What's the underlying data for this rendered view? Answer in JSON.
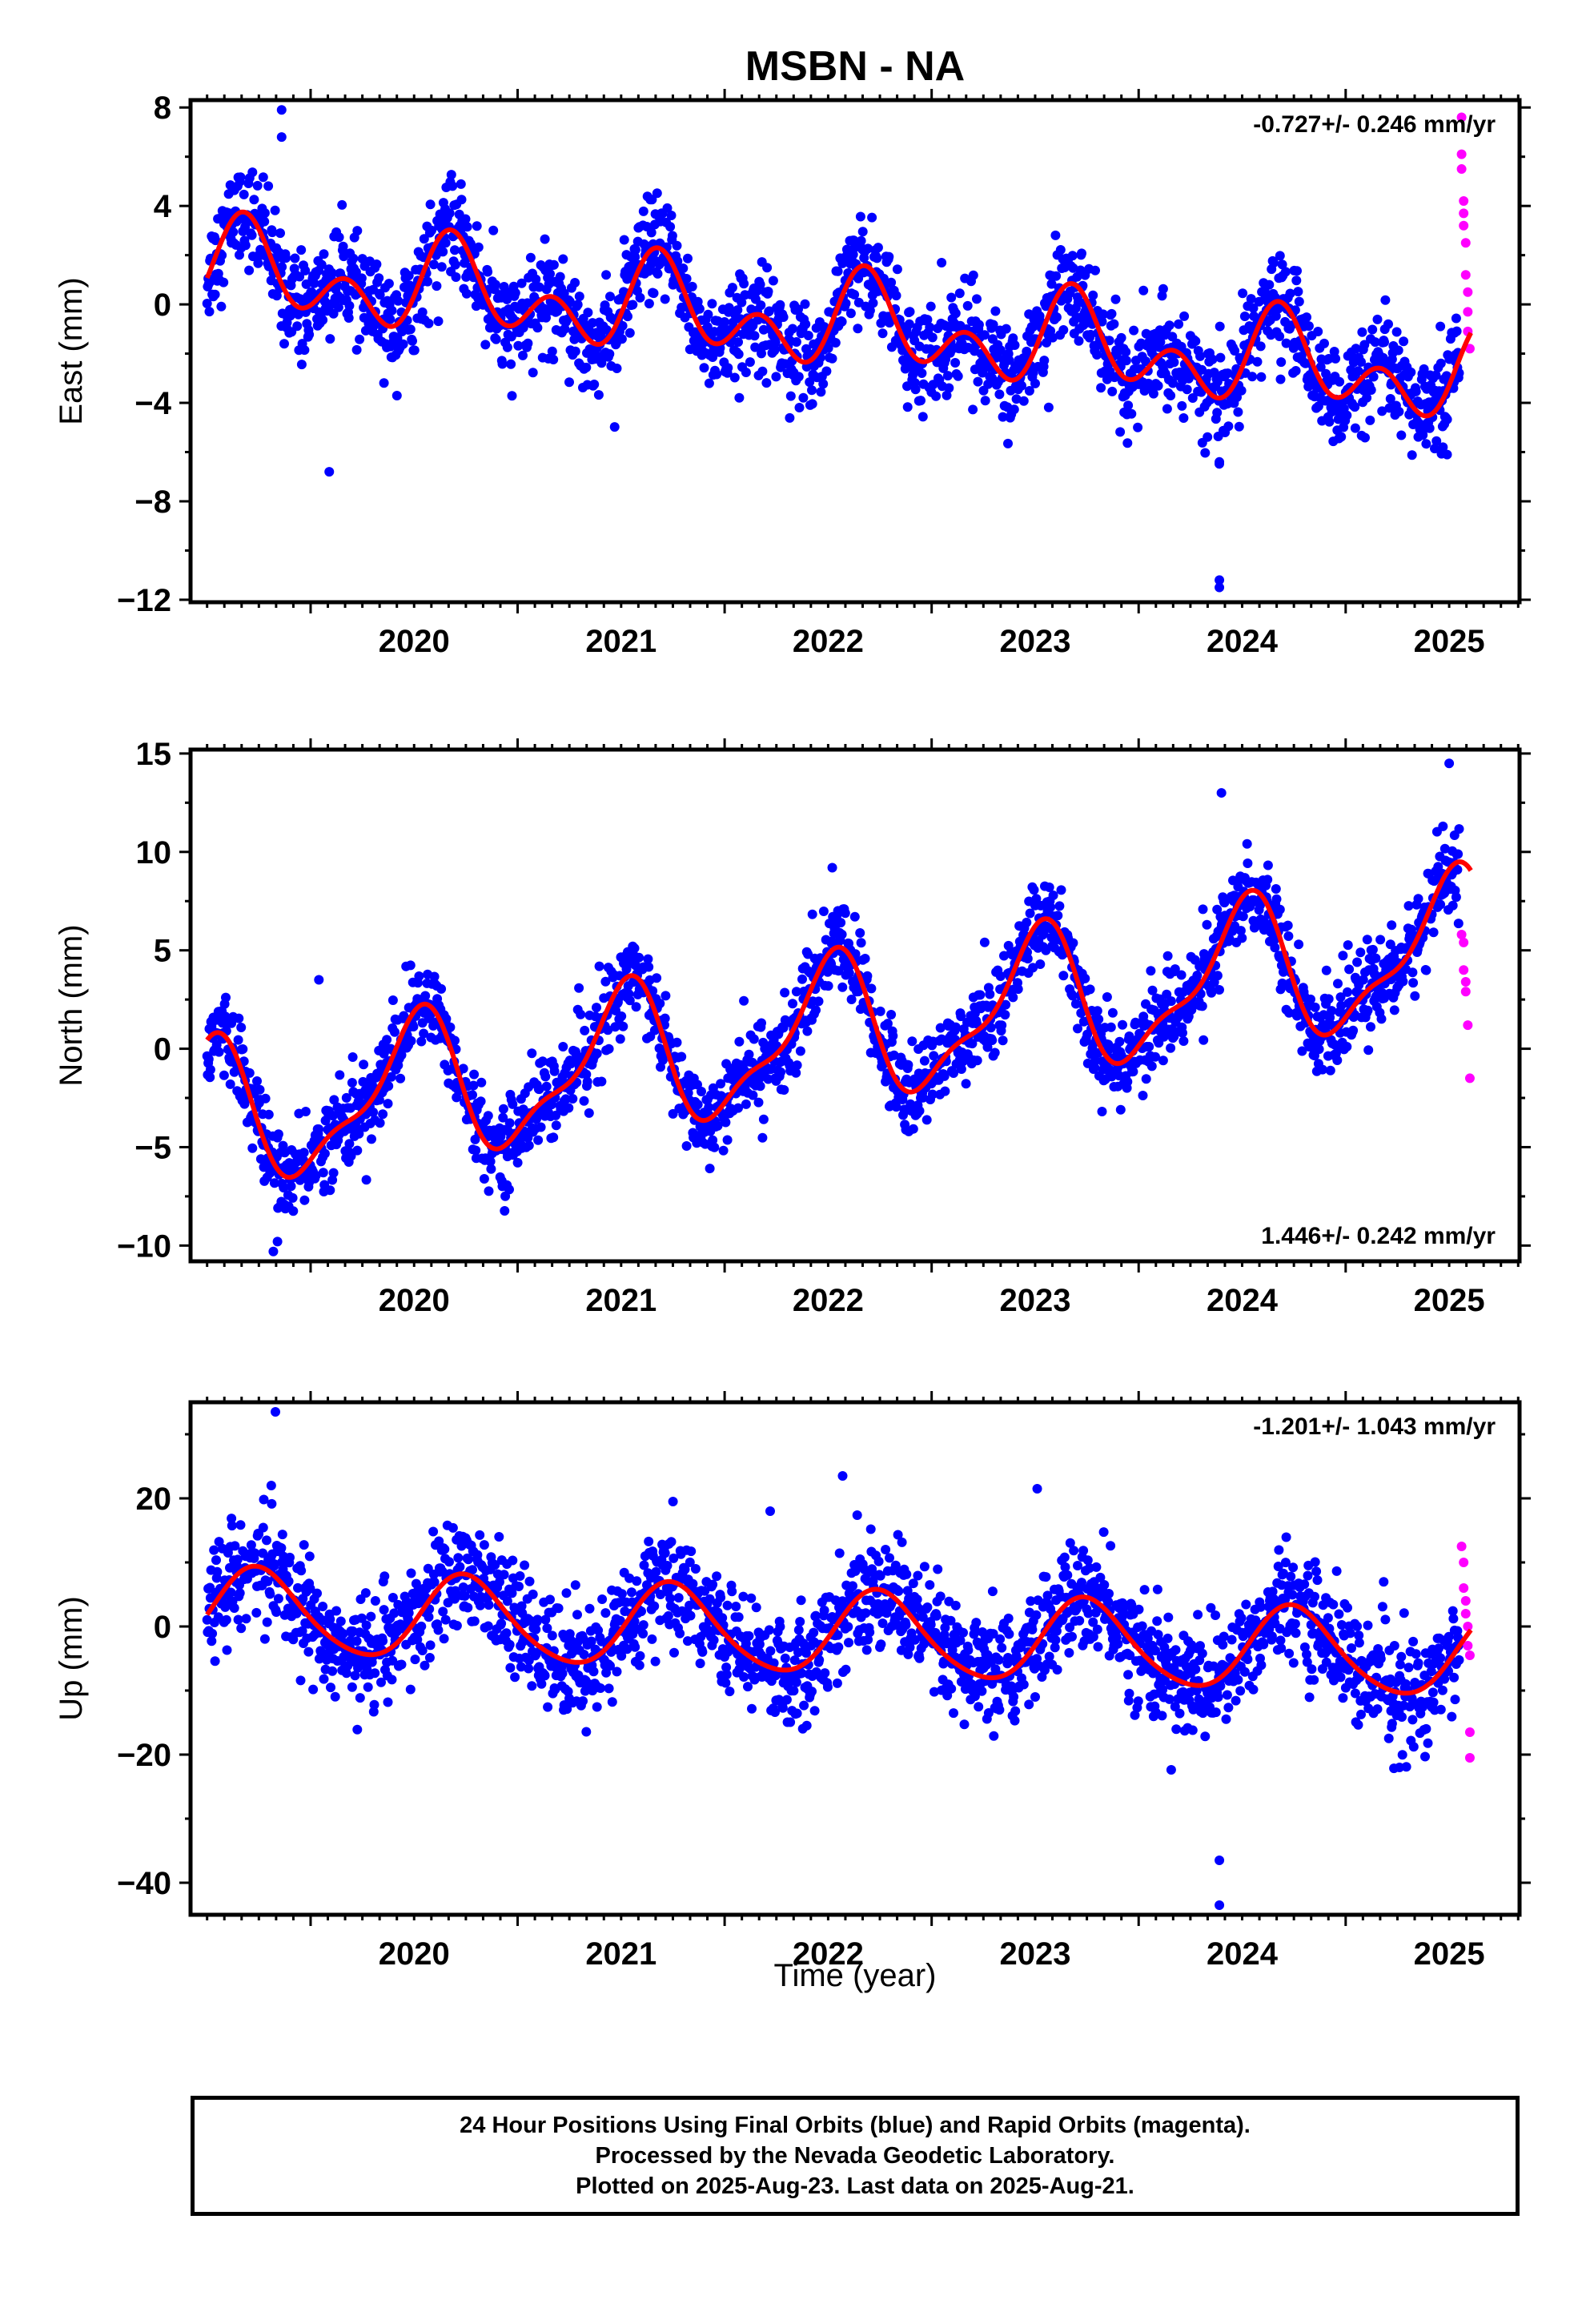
{
  "title": "MSBN - NA",
  "xlabel": "Time (year)",
  "footer": {
    "line1": "24 Hour Positions Using Final Orbits (blue) and Rapid Orbits (magenta).",
    "line2": "Processed by the Nevada Geodetic Laboratory.",
    "line3": "Plotted on 2025-Aug-23. Last data on 2025-Aug-21."
  },
  "colors": {
    "final": "#0000ff",
    "rapid": "#ff00ff",
    "model": "#ff0000",
    "axis": "#000000"
  },
  "chart_data": [
    {
      "type": "scatter",
      "name": "east",
      "ylabel": "East (mm)",
      "rate_label": "-0.727+/- 0.246 mm/yr",
      "rate_position": "top-right",
      "xlim": [
        2019.42,
        2025.84
      ],
      "ylim": [
        -12.1,
        8.3
      ],
      "xticks": [
        2020,
        2021,
        2022,
        2023,
        2024,
        2025
      ],
      "yticks": [
        8,
        4,
        0,
        -4,
        -8,
        -12
      ],
      "ytick_labels": [
        "8",
        "4",
        "0",
        "−4",
        "−8",
        "−12"
      ],
      "model": {
        "offset": 1.4,
        "rate": -0.727,
        "annual_amp": 1.2,
        "annual_phase_year": 2019.7,
        "semi_amp": 1.3,
        "semi_phase_year": 2019.67
      },
      "final": {
        "x_start": 2019.5,
        "x_end": 2025.55,
        "noise": 1.0
      },
      "rapid_points": [
        [
          2025.56,
          7.6
        ],
        [
          2025.56,
          6.1
        ],
        [
          2025.56,
          5.5
        ],
        [
          2025.57,
          4.2
        ],
        [
          2025.57,
          3.7
        ],
        [
          2025.57,
          3.2
        ],
        [
          2025.58,
          2.5
        ],
        [
          2025.58,
          1.2
        ],
        [
          2025.59,
          0.5
        ],
        [
          2025.59,
          -0.3
        ],
        [
          2025.59,
          -1.1
        ],
        [
          2025.6,
          -1.8
        ]
      ],
      "outliers": [
        [
          2019.86,
          7.9
        ],
        [
          2019.86,
          6.8
        ],
        [
          2020.09,
          -6.8
        ],
        [
          2024.39,
          -11.2
        ],
        [
          2024.39,
          -11.5
        ],
        [
          2024.39,
          -6.4
        ],
        [
          2025.49,
          -6.1
        ],
        [
          2025.47,
          -5.8
        ]
      ]
    },
    {
      "type": "scatter",
      "name": "north",
      "ylabel": "North (mm)",
      "rate_label": "1.446+/- 0.242 mm/yr",
      "rate_position": "bottom-right",
      "xlim": [
        2019.42,
        2025.84
      ],
      "ylim": [
        -10.8,
        15.2
      ],
      "xticks": [
        2020,
        2021,
        2022,
        2023,
        2024,
        2025
      ],
      "yticks": [
        15,
        10,
        5,
        0,
        -5,
        -10
      ],
      "ytick_labels": [
        "15",
        "10",
        "5",
        "0",
        "−5",
        "−10"
      ],
      "model": {
        "offset": -3.6,
        "rate": 1.446,
        "annual_amp": 3.4,
        "annual_phase_year": 2019.5,
        "semi_amp": 1.2,
        "semi_phase_year": 2019.58
      },
      "final": {
        "x_start": 2019.5,
        "x_end": 2025.55,
        "noise": 1.1
      },
      "rapid_points": [
        [
          2025.56,
          5.8
        ],
        [
          2025.57,
          5.4
        ],
        [
          2025.57,
          4.0
        ],
        [
          2025.58,
          3.4
        ],
        [
          2025.58,
          2.9
        ],
        [
          2025.59,
          1.2
        ],
        [
          2025.6,
          -1.5
        ]
      ],
      "outliers": [
        [
          2020.04,
          3.5
        ],
        [
          2022.52,
          9.2
        ],
        [
          2024.4,
          13.0
        ],
        [
          2025.5,
          14.5
        ],
        [
          2025.47,
          11.3
        ],
        [
          2019.82,
          -10.3
        ],
        [
          2019.84,
          -9.8
        ]
      ]
    },
    {
      "type": "scatter",
      "name": "up",
      "ylabel": "Up (mm)",
      "rate_label": "-1.201+/- 1.043 mm/yr",
      "rate_position": "top-right",
      "xlim": [
        2019.42,
        2025.84
      ],
      "ylim": [
        -45,
        35
      ],
      "xticks": [
        2020,
        2021,
        2022,
        2023,
        2024,
        2025
      ],
      "yticks": [
        20,
        0,
        -20,
        -40
      ],
      "ytick_labels": [
        "20",
        "0",
        "−20",
        "−40"
      ],
      "model": {
        "offset": 2.5,
        "rate": -1.201,
        "annual_amp": 6.5,
        "annual_phase_year": 2019.75,
        "semi_amp": 0.8,
        "semi_phase_year": 2019.7
      },
      "final": {
        "x_start": 2019.5,
        "x_end": 2025.55,
        "noise": 4.3
      },
      "rapid_points": [
        [
          2025.56,
          12.5
        ],
        [
          2025.57,
          10.0
        ],
        [
          2025.57,
          6.0
        ],
        [
          2025.58,
          4.0
        ],
        [
          2025.58,
          2.0
        ],
        [
          2025.59,
          0.0
        ],
        [
          2025.59,
          -3.0
        ],
        [
          2025.6,
          -4.5
        ],
        [
          2025.6,
          -16.5
        ],
        [
          2025.6,
          -20.5
        ]
      ],
      "outliers": [
        [
          2019.83,
          33.5
        ],
        [
          2019.81,
          22.0
        ],
        [
          2022.57,
          23.5
        ],
        [
          2023.51,
          21.5
        ],
        [
          2024.39,
          -36.5
        ],
        [
          2024.39,
          -43.5
        ],
        [
          2025.26,
          -22.0
        ],
        [
          2022.22,
          18.0
        ]
      ]
    }
  ]
}
